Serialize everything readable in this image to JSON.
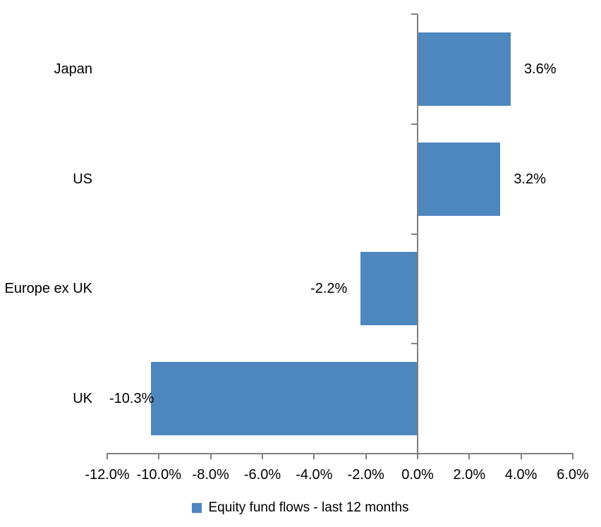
{
  "chart_data": {
    "type": "bar",
    "orientation": "horizontal",
    "title": "",
    "xlabel": "",
    "ylabel": "",
    "categories": [
      "Japan",
      "US",
      "Europe ex UK",
      "UK"
    ],
    "series": [
      {
        "name": "Equity fund flows - last 12 months",
        "values": [
          3.6,
          3.2,
          -2.2,
          -10.3
        ],
        "data_labels": [
          "3.6%",
          "3.2%",
          "-2.2%",
          "-10.3%"
        ]
      }
    ],
    "xlim": [
      -12,
      6
    ],
    "x_ticks": [
      -12,
      -10,
      -8,
      -6,
      -4,
      -2,
      0,
      2,
      4,
      6
    ],
    "x_tick_labels": [
      "-12.0%",
      "-10.0%",
      "-8.0%",
      "-6.0%",
      "-4.0%",
      "-2.0%",
      "0.0%",
      "2.0%",
      "4.0%",
      "6.0%"
    ],
    "grid": "off",
    "legend_position": "bottom",
    "colors": {
      "bar_fill": "#4E86BE",
      "axis_line": "#808080",
      "text": "#000000",
      "background": "#FFFFFF"
    }
  },
  "legend": {
    "label": "Equity fund flows - last 12 months"
  }
}
